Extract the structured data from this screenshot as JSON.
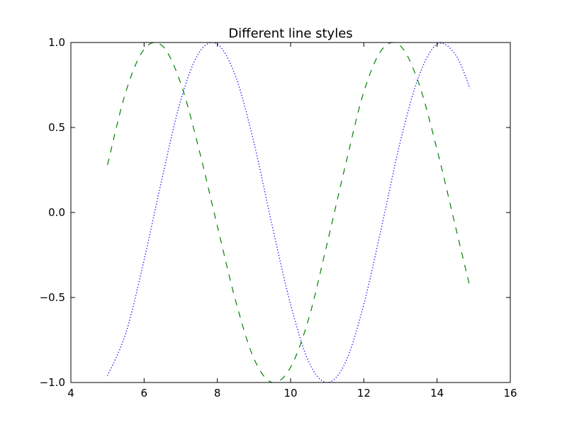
{
  "chart_data": {
    "type": "line",
    "title": "Different line styles",
    "xlabel": "",
    "ylabel": "",
    "xlim": [
      4,
      16
    ],
    "ylim": [
      -1.0,
      1.0
    ],
    "xticks": [
      4,
      6,
      8,
      10,
      12,
      14,
      16
    ],
    "xtick_labels": [
      "4",
      "6",
      "8",
      "10",
      "12",
      "14",
      "16"
    ],
    "yticks": [
      -1.0,
      -0.5,
      0.0,
      0.5,
      1.0
    ],
    "ytick_labels": [
      "−1.0",
      "−0.5",
      "0.0",
      "0.5",
      "1.0"
    ],
    "grid": false,
    "legend": "none",
    "series": [
      {
        "style": "dashed",
        "color": "#008000",
        "x": [
          5.0,
          5.5,
          6.0,
          6.5,
          7.0,
          7.5,
          8.0,
          8.5,
          9.0,
          9.5,
          10.0,
          10.5,
          11.0,
          11.5,
          12.0,
          12.5,
          13.0,
          13.5,
          14.0,
          14.5,
          14.9
        ],
        "y": [
          0.28,
          0.71,
          0.96,
          0.98,
          0.76,
          0.37,
          -0.08,
          -0.52,
          -0.86,
          -1.0,
          -0.91,
          -0.62,
          -0.18,
          0.28,
          0.71,
          0.96,
          0.98,
          0.76,
          0.37,
          -0.08,
          -0.44
        ]
      },
      {
        "style": "dotted",
        "color": "#0000ff",
        "x": [
          5.0,
          5.5,
          6.0,
          6.5,
          7.0,
          7.5,
          8.0,
          8.5,
          9.0,
          9.5,
          10.0,
          10.5,
          11.0,
          11.5,
          12.0,
          12.5,
          13.0,
          13.5,
          14.0,
          14.5,
          14.9
        ],
        "y": [
          -0.96,
          -0.71,
          -0.28,
          0.21,
          0.66,
          0.94,
          0.99,
          0.8,
          0.41,
          -0.08,
          -0.54,
          -0.88,
          -1.0,
          -0.88,
          -0.54,
          -0.07,
          0.42,
          0.8,
          0.99,
          0.93,
          0.73
        ]
      }
    ]
  }
}
